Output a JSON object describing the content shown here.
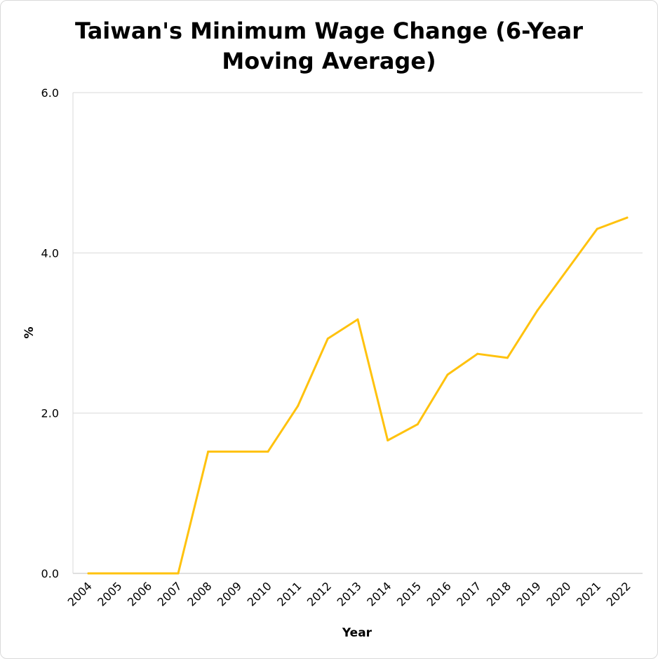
{
  "chart_data": {
    "type": "line",
    "title": "Taiwan's Minimum Wage Change (6-Year Moving Average)",
    "title_lines": [
      "Taiwan's Minimum Wage Change (6-Year",
      "Moving Average)"
    ],
    "xlabel": "Year",
    "ylabel": "%",
    "categories": [
      "2004",
      "2005",
      "2006",
      "2007",
      "2008",
      "2009",
      "2010",
      "2011",
      "2012",
      "2013",
      "2014",
      "2015",
      "2016",
      "2017",
      "2018",
      "2019",
      "2020",
      "2021",
      "2022"
    ],
    "y_ticks": [
      "0.0",
      "2.0",
      "4.0",
      "6.0"
    ],
    "ylim": [
      0,
      6
    ],
    "grid": true,
    "legend": "none",
    "series": [
      {
        "color": "#FFC20E",
        "values": [
          0,
          0,
          0,
          0,
          1.52,
          1.52,
          1.52,
          2.09,
          2.93,
          3.17,
          1.66,
          1.86,
          2.48,
          2.74,
          2.69,
          3.28,
          3.79,
          4.3,
          4.44
        ]
      }
    ]
  }
}
